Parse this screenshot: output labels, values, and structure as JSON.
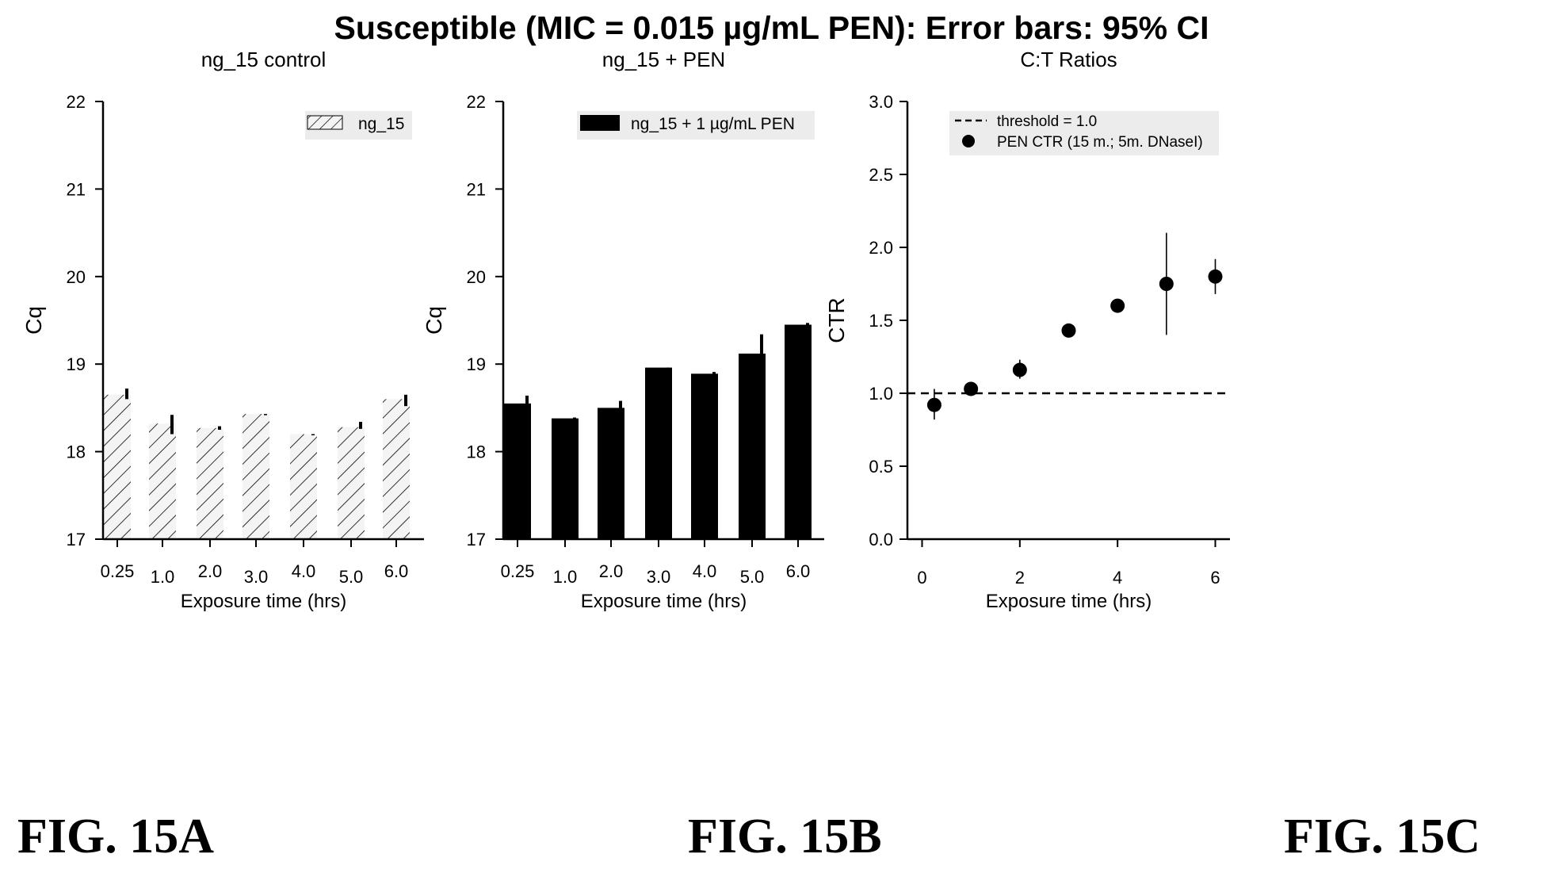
{
  "suptitle": "Susceptible (MIC = 0.015 µg/mL PEN): Error bars: 95% CI",
  "figure_labels": [
    "FIG. 15A",
    "FIG. 15B",
    "FIG. 15C"
  ],
  "colors": {
    "bar_b": "#000000",
    "marker": "#000000",
    "hatch_bg": "#f2f2f2"
  },
  "chart_data": [
    {
      "type": "bar",
      "title": "ng_15 control",
      "xlabel": "Exposure time (hrs)",
      "ylabel": "Cq",
      "categories": [
        "0.25",
        "1.0",
        "2.0",
        "3.0",
        "4.0",
        "5.0",
        "6.0"
      ],
      "series": [
        {
          "name": "ng_15",
          "style": "hatched",
          "values": [
            18.65,
            18.32,
            18.27,
            18.43,
            18.2,
            18.28,
            18.6
          ],
          "err_low": [
            18.6,
            18.2,
            18.25,
            18.43,
            18.2,
            18.26,
            18.52
          ],
          "err_high": [
            18.72,
            18.42,
            18.29,
            18.43,
            18.2,
            18.34,
            18.65
          ]
        }
      ],
      "ylim": [
        17,
        22
      ],
      "yticks": [
        "17",
        "18",
        "19",
        "20",
        "21",
        "22"
      ],
      "legend": "top-right"
    },
    {
      "type": "bar",
      "title": "ng_15 + PEN",
      "xlabel": "Exposure time (hrs)",
      "ylabel": "Cq",
      "categories": [
        "0.25",
        "1.0",
        "2.0",
        "3.0",
        "4.0",
        "5.0",
        "6.0"
      ],
      "series": [
        {
          "name": "ng_15 + 1 µg/mL PEN",
          "style": "solid",
          "values": [
            18.55,
            18.38,
            18.5,
            18.96,
            18.89,
            19.12,
            19.45
          ],
          "err_low": [
            18.5,
            18.37,
            18.44,
            18.96,
            18.87,
            18.98,
            19.43
          ],
          "err_high": [
            18.64,
            18.39,
            18.58,
            18.96,
            18.91,
            19.34,
            19.47
          ]
        }
      ],
      "ylim": [
        17,
        22
      ],
      "yticks": [
        "17",
        "18",
        "19",
        "20",
        "21",
        "22"
      ],
      "legend": "top-right"
    },
    {
      "type": "scatter",
      "title": "C:T Ratios",
      "xlabel": "Exposure time (hrs)",
      "ylabel": "CTR",
      "xlim": [
        -0.3,
        6.3
      ],
      "xticks": [
        "0",
        "2",
        "4",
        "6"
      ],
      "ylim": [
        0,
        3
      ],
      "yticks": [
        "0.0",
        "0.5",
        "1.0",
        "1.5",
        "2.0",
        "2.5",
        "3.0"
      ],
      "threshold": {
        "name": "threshold = 1.0",
        "value": 1.0
      },
      "series": [
        {
          "name": "PEN CTR (15 m.; 5m. DNaseI)",
          "x": [
            0.25,
            1,
            2,
            3,
            4,
            5,
            6
          ],
          "y": [
            0.92,
            1.03,
            1.16,
            1.43,
            1.6,
            1.75,
            1.8
          ],
          "err_low": [
            0.82,
            1.0,
            1.1,
            1.41,
            1.58,
            1.4,
            1.68
          ],
          "err_high": [
            1.03,
            1.06,
            1.23,
            1.46,
            1.63,
            2.1,
            1.92
          ]
        }
      ],
      "legend": "top-right"
    }
  ]
}
